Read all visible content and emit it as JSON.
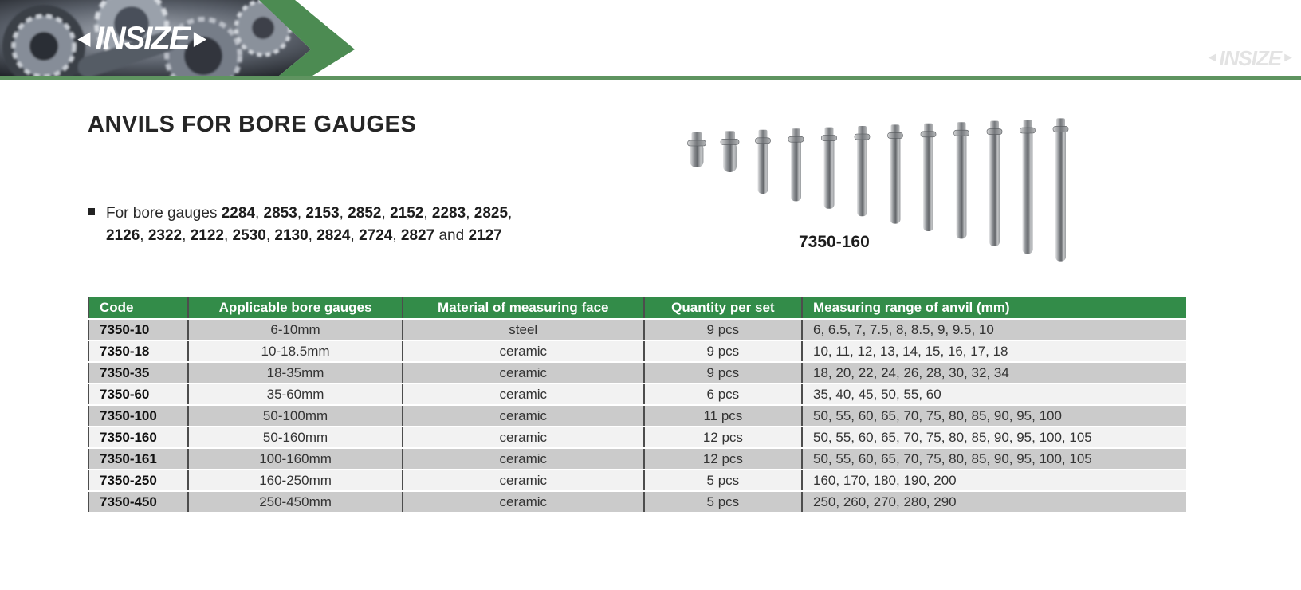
{
  "brand": {
    "logo": "INSIZE",
    "watermark": "INSIZE"
  },
  "title": "ANVILS FOR BORE GAUGES",
  "intro": {
    "prefix": "For bore gauges",
    "models": [
      "2284",
      "2853",
      "2153",
      "2852",
      "2152",
      "2283",
      "2825",
      "2126",
      "2322",
      "2122",
      "2530",
      "2130",
      "2824",
      "2724",
      "2827",
      "2127"
    ],
    "conjunction": "and",
    "line_break_after_index": 6
  },
  "figure": {
    "caption": "7350-160",
    "pin_count": 12
  },
  "table": {
    "columns": [
      "Code",
      "Applicable bore gauges",
      "Material of measuring face",
      "Quantity per set",
      "Measuring range of anvil (mm)"
    ],
    "rows": [
      {
        "code": "7350-10",
        "bore_gauges": "6-10mm",
        "material": "steel",
        "quantity": "9 pcs",
        "range": "6, 6.5, 7, 7.5, 8, 8.5, 9, 9.5, 10"
      },
      {
        "code": "7350-18",
        "bore_gauges": "10-18.5mm",
        "material": "ceramic",
        "quantity": "9 pcs",
        "range": "10, 11, 12, 13, 14, 15, 16, 17, 18"
      },
      {
        "code": "7350-35",
        "bore_gauges": "18-35mm",
        "material": "ceramic",
        "quantity": "9 pcs",
        "range": "18, 20, 22, 24, 26, 28, 30, 32, 34"
      },
      {
        "code": "7350-60",
        "bore_gauges": "35-60mm",
        "material": "ceramic",
        "quantity": "6 pcs",
        "range": "35, 40, 45, 50, 55, 60"
      },
      {
        "code": "7350-100",
        "bore_gauges": "50-100mm",
        "material": "ceramic",
        "quantity": "11 pcs",
        "range": "50, 55, 60, 65, 70, 75, 80, 85, 90, 95, 100"
      },
      {
        "code": "7350-160",
        "bore_gauges": "50-160mm",
        "material": "ceramic",
        "quantity": "12 pcs",
        "range": "50, 55, 60, 65, 70, 75, 80, 85, 90, 95, 100, 105"
      },
      {
        "code": "7350-161",
        "bore_gauges": "100-160mm",
        "material": "ceramic",
        "quantity": "12 pcs",
        "range": "50, 55, 60, 65, 70, 75, 80, 85, 90, 95, 100, 105"
      },
      {
        "code": "7350-250",
        "bore_gauges": "160-250mm",
        "material": "ceramic",
        "quantity": "5 pcs",
        "range": "160, 170, 180, 190, 200"
      },
      {
        "code": "7350-450",
        "bore_gauges": "250-450mm",
        "material": "ceramic",
        "quantity": "5 pcs",
        "range": "250, 260, 270, 280, 290"
      }
    ]
  },
  "colors": {
    "table_header_green": "#338c49",
    "rule_green": "#5f9460",
    "chevron_green": "#4c8b52",
    "row_dark": "#cbcbcb",
    "row_light": "#f2f2f2",
    "separator": "#4d4d4d"
  }
}
